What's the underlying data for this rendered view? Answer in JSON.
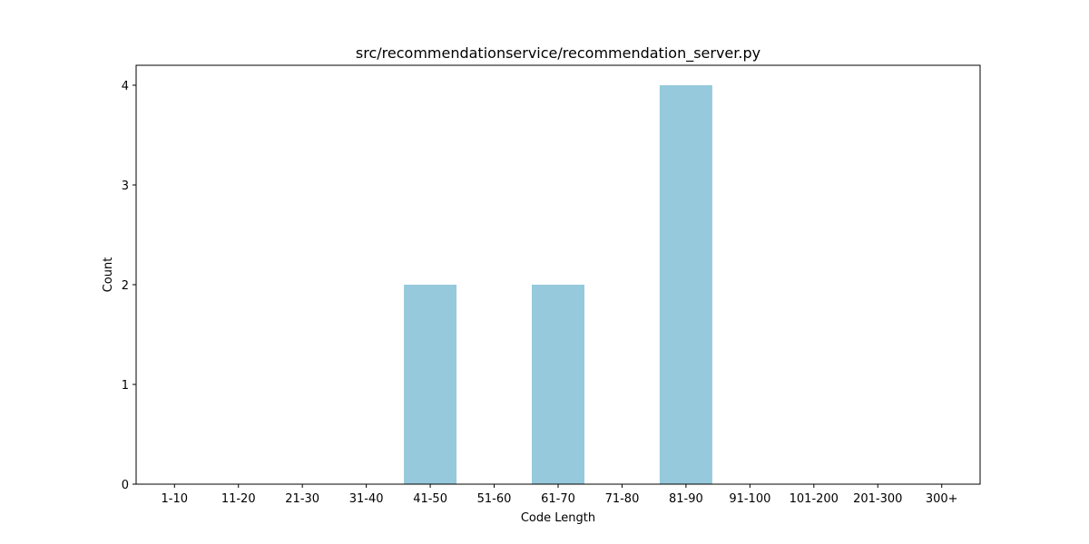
{
  "chart_data": {
    "type": "bar",
    "title": "src/recommendationservice/recommendation_server.py",
    "xlabel": "Code Length",
    "ylabel": "Count",
    "categories": [
      "1-10",
      "11-20",
      "21-30",
      "31-40",
      "41-50",
      "51-60",
      "61-70",
      "71-80",
      "81-90",
      "91-100",
      "101-200",
      "201-300",
      "300+"
    ],
    "values": [
      0,
      0,
      0,
      0,
      2,
      0,
      2,
      0,
      4,
      0,
      0,
      0,
      0
    ],
    "ylim": [
      0,
      4.2
    ],
    "yticks": [
      "0",
      "1",
      "2",
      "3",
      "4"
    ],
    "bar_color": "#96c9dc",
    "grid": false,
    "legend": "none"
  }
}
